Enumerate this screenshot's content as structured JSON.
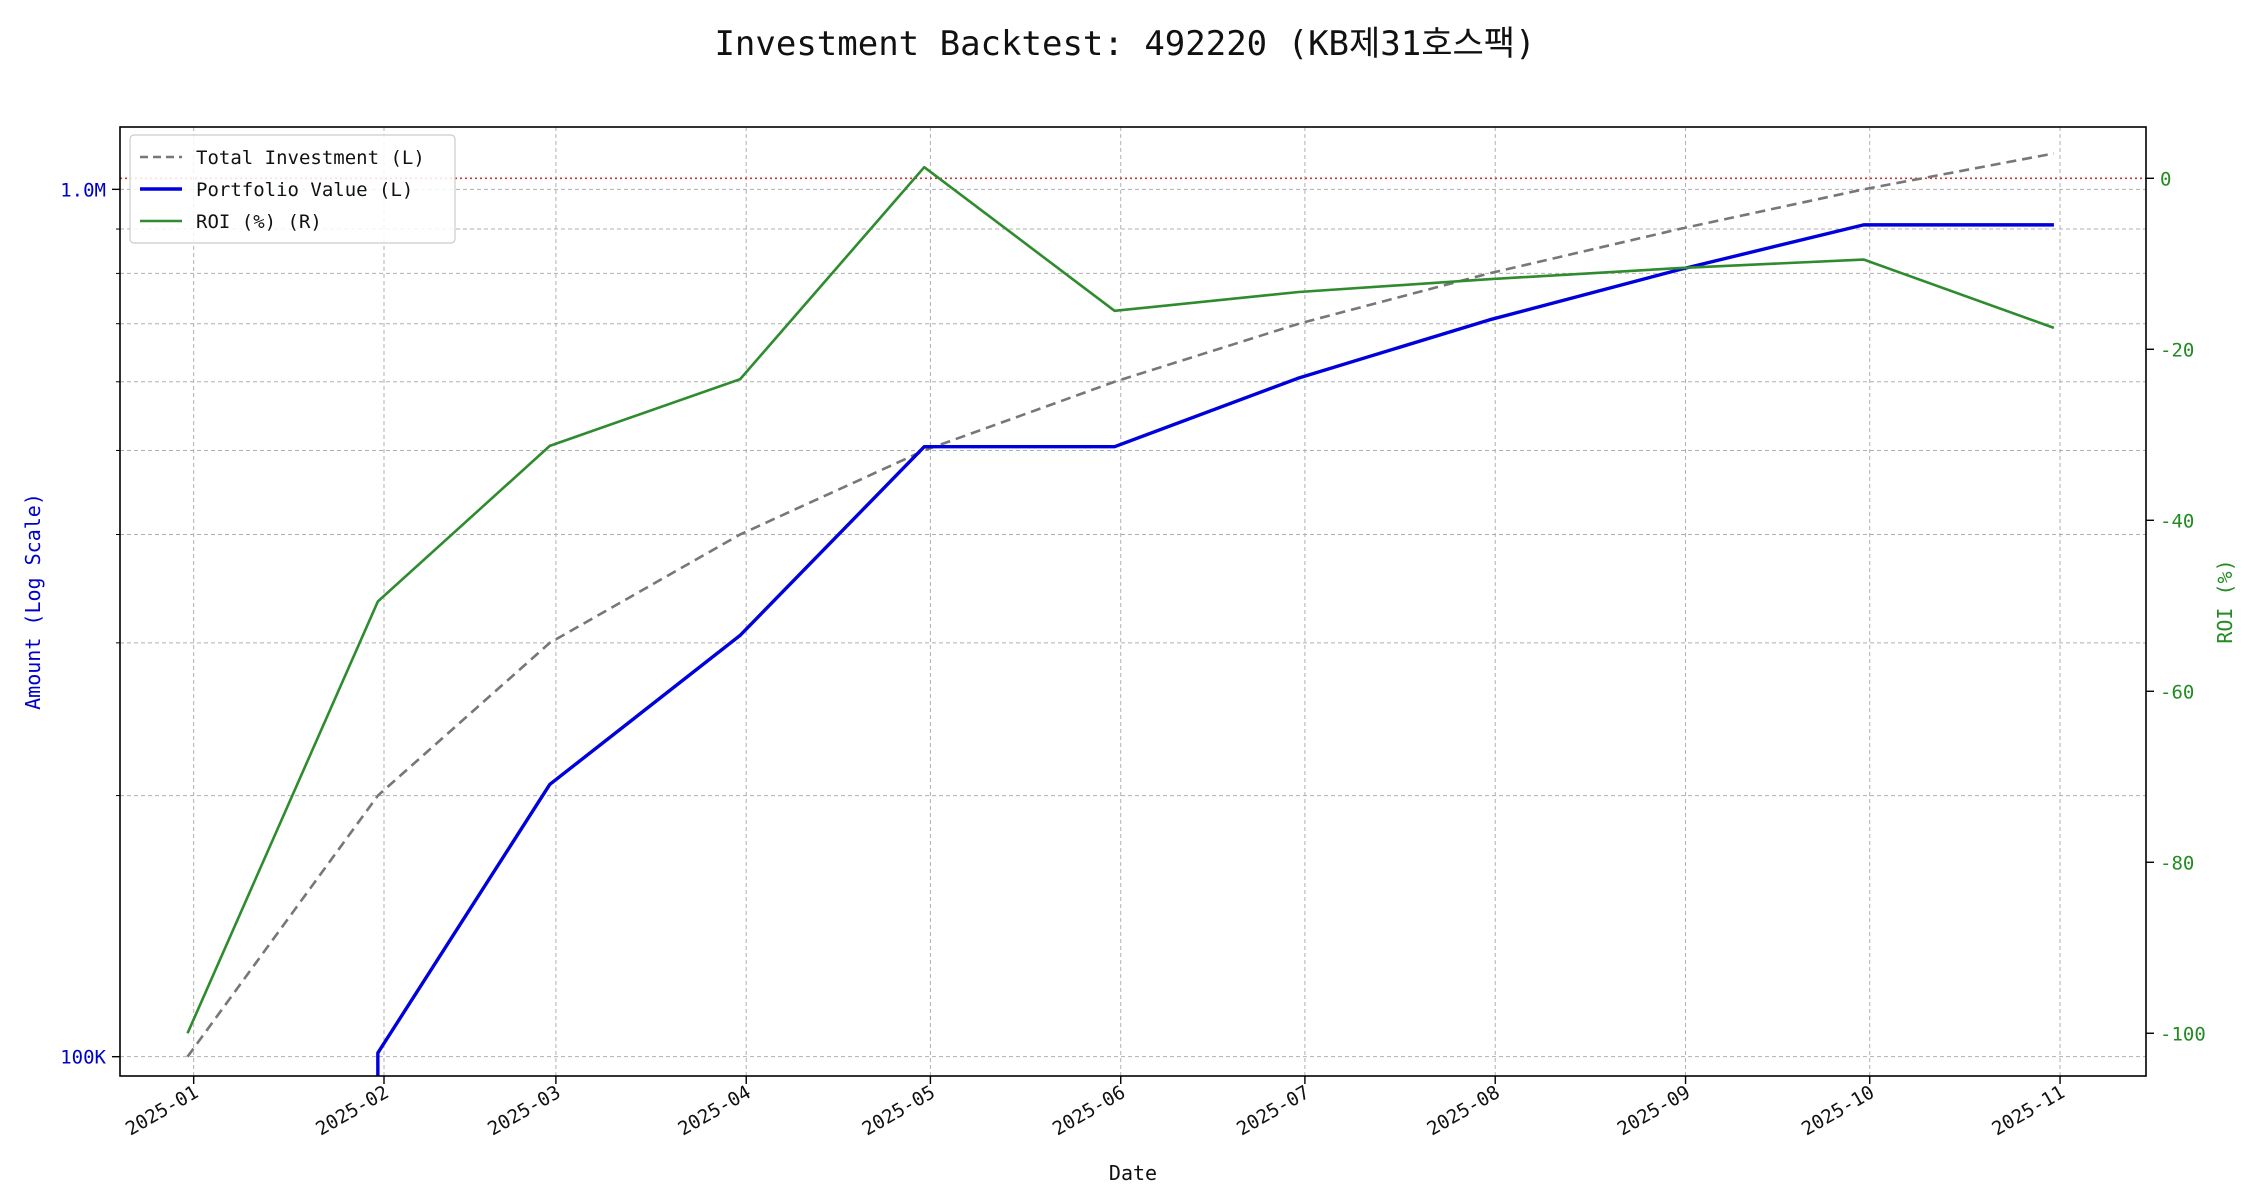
{
  "chart_data": {
    "title": "Investment Backtest: 492220 (KB제31호스팩)",
    "type": "line",
    "xlabel": "Date",
    "ylabel_left": "Amount (Log Scale)",
    "ylabel_right": "ROI (%)",
    "left_axis": {
      "scale": "log",
      "range": [
        95000,
        1180000
      ],
      "ticks": [
        {
          "value": 100000,
          "label": "100K"
        },
        {
          "value": 1000000,
          "label": "1.0M"
        }
      ],
      "minor_gridlines": [
        200000,
        300000,
        400000,
        500000,
        600000,
        700000,
        800000,
        900000
      ],
      "color": "#0000cc"
    },
    "right_axis": {
      "scale": "linear",
      "range": [
        -105,
        6
      ],
      "ticks": [
        0,
        -20,
        -40,
        -60,
        -80,
        -100
      ],
      "color": "#228b22"
    },
    "x_axis": {
      "range": [
        "2024-12-20",
        "2025-11-15"
      ],
      "ticks": [
        "2025-01",
        "2025-02",
        "2025-03",
        "2025-04",
        "2025-05",
        "2025-06",
        "2025-07",
        "2025-08",
        "2025-09",
        "2025-10",
        "2025-11"
      ]
    },
    "grid": true,
    "legend": {
      "position": "upper-left",
      "entries": [
        {
          "label": "Total Investment (L)",
          "color": "#777777",
          "style": "dashed"
        },
        {
          "label": "Portfolio Value (L)",
          "color": "#0000dd",
          "style": "solid"
        },
        {
          "label": "ROI (%) (R)",
          "color": "#2e8b2e",
          "style": "solid"
        }
      ]
    },
    "reference_line": {
      "axis": "right",
      "value": 0,
      "color": "#cc3333",
      "style": "dotted"
    },
    "series": [
      {
        "name": "Total Investment (L)",
        "axis": "left",
        "color": "#777777",
        "style": "dashed",
        "points": [
          {
            "x": "2024-12-31",
            "y": 100000
          },
          {
            "x": "2025-01-31",
            "y": 200000
          },
          {
            "x": "2025-02-28",
            "y": 300000
          },
          {
            "x": "2025-03-31",
            "y": 400000
          },
          {
            "x": "2025-04-30",
            "y": 500000
          },
          {
            "x": "2025-05-31",
            "y": 600000
          },
          {
            "x": "2025-06-30",
            "y": 700000
          },
          {
            "x": "2025-07-31",
            "y": 800000
          },
          {
            "x": "2025-08-31",
            "y": 900000
          },
          {
            "x": "2025-09-30",
            "y": 1000000
          },
          {
            "x": "2025-10-31",
            "y": 1100000
          }
        ]
      },
      {
        "name": "Portfolio Value (L)",
        "axis": "left",
        "color": "#0000dd",
        "style": "solid",
        "points": [
          {
            "x": "2025-01-31",
            "y": 90000
          },
          {
            "x": "2025-01-31",
            "y": 101000
          },
          {
            "x": "2025-02-28",
            "y": 206000
          },
          {
            "x": "2025-03-31",
            "y": 306000
          },
          {
            "x": "2025-04-30",
            "y": 505000
          },
          {
            "x": "2025-05-31",
            "y": 505000
          },
          {
            "x": "2025-06-30",
            "y": 606000
          },
          {
            "x": "2025-07-31",
            "y": 707000
          },
          {
            "x": "2025-08-31",
            "y": 808000
          },
          {
            "x": "2025-09-30",
            "y": 910000
          },
          {
            "x": "2025-10-31",
            "y": 910000
          }
        ]
      },
      {
        "name": "ROI (%) (R)",
        "axis": "right",
        "color": "#2e8b2e",
        "style": "solid",
        "points": [
          {
            "x": "2024-12-31",
            "y": -100
          },
          {
            "x": "2025-01-31",
            "y": -49.5
          },
          {
            "x": "2025-02-28",
            "y": -31.3
          },
          {
            "x": "2025-03-31",
            "y": -23.5
          },
          {
            "x": "2025-04-30",
            "y": 1.3
          },
          {
            "x": "2025-05-31",
            "y": -15.5
          },
          {
            "x": "2025-06-30",
            "y": -13.3
          },
          {
            "x": "2025-07-31",
            "y": -11.8
          },
          {
            "x": "2025-08-31",
            "y": -10.5
          },
          {
            "x": "2025-09-30",
            "y": -9.5
          },
          {
            "x": "2025-10-31",
            "y": -17.5
          }
        ]
      }
    ]
  }
}
